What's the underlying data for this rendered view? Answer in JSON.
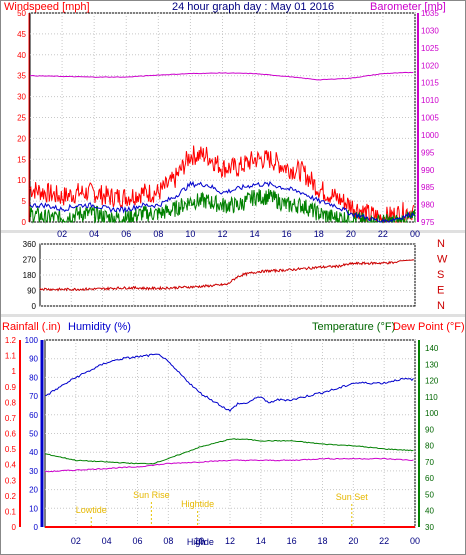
{
  "chart_data": [
    {
      "type": "line",
      "title": "24 hour graph day : May 01 2016",
      "ylabel_left": "Windspeed [mph]",
      "ylabel_right": "Barometer [mb]",
      "ylim": [
        0,
        50
      ],
      "y2lim": [
        975,
        1035
      ],
      "yticks": [
        "0",
        "5",
        "10",
        "15",
        "20",
        "25",
        "30",
        "35",
        "40",
        "45",
        "50"
      ],
      "y2ticks": [
        "975",
        "980",
        "985",
        "990",
        "995",
        "1000",
        "1005",
        "1010",
        "1015",
        "1020",
        "1025",
        "1030",
        "1035"
      ],
      "xticks": [
        "02",
        "04",
        "06",
        "08",
        "10",
        "12",
        "14",
        "16",
        "18",
        "20",
        "22",
        "00"
      ],
      "grid": true,
      "colors": {
        "gust": "#ff0000",
        "average": "#008000",
        "mean": "#0000cc",
        "barometer": "#cc00cc"
      },
      "series": [
        {
          "name": "Windspeed [mph]",
          "color": "#ff0000",
          "x": [
            0,
            1,
            2,
            3,
            4,
            5,
            6,
            7,
            8,
            9,
            10,
            11,
            12,
            13,
            14,
            15,
            16,
            17,
            18,
            19,
            20,
            21,
            22,
            23,
            24
          ],
          "values": [
            8,
            7,
            6,
            7,
            7,
            6,
            6,
            7,
            7,
            10,
            16,
            16,
            13,
            13,
            15,
            15,
            13,
            12,
            8,
            6,
            4,
            2,
            1,
            2,
            3
          ]
        },
        {
          "name": "Wind mean",
          "color": "#0000cc",
          "x": [
            0,
            1,
            2,
            3,
            4,
            5,
            6,
            7,
            8,
            9,
            10,
            11,
            12,
            13,
            14,
            15,
            16,
            17,
            18,
            19,
            20,
            21,
            22,
            23,
            24
          ],
          "values": [
            4,
            4,
            3,
            4,
            4,
            3,
            3,
            4,
            4,
            6,
            9,
            9,
            7,
            8,
            9,
            9,
            8,
            7,
            5,
            4,
            2,
            1,
            0,
            1,
            2
          ]
        },
        {
          "name": "Wind average",
          "color": "#008000",
          "x": [
            0,
            1,
            2,
            3,
            4,
            5,
            6,
            7,
            8,
            9,
            10,
            11,
            12,
            13,
            14,
            15,
            16,
            17,
            18,
            19,
            20,
            21,
            22,
            23,
            24
          ],
          "values": [
            2,
            1,
            1,
            2,
            2,
            1,
            1,
            2,
            2,
            3,
            5,
            5,
            4,
            4,
            6,
            6,
            4,
            4,
            2,
            1,
            1,
            0,
            0,
            0,
            1
          ]
        },
        {
          "name": "Barometer [mb]",
          "color": "#cc00cc",
          "x": [
            0,
            2,
            4,
            6,
            8,
            10,
            12,
            14,
            16,
            18,
            20,
            22,
            24
          ],
          "values": [
            1017,
            1016.8,
            1016.6,
            1016.6,
            1017.2,
            1017.6,
            1017.8,
            1017.6,
            1016.8,
            1015.8,
            1016.3,
            1017.6,
            1018
          ]
        }
      ]
    },
    {
      "type": "line",
      "ylim": [
        0,
        360
      ],
      "yticks": [
        "0",
        "90",
        "180",
        "270",
        "360"
      ],
      "direction_labels": [
        "N",
        "W",
        "S",
        "E",
        "N"
      ],
      "xticks": [
        "02",
        "04",
        "06",
        "08",
        "10",
        "12",
        "14",
        "16",
        "18",
        "20",
        "22",
        "00"
      ],
      "grid": true,
      "series": [
        {
          "name": "Wind direction",
          "color": "#cc0000",
          "x": [
            0,
            1,
            2,
            3,
            4,
            5,
            6,
            7,
            8,
            9,
            10,
            11,
            12,
            12.2,
            12.6,
            13,
            14,
            15,
            16,
            17,
            18,
            19,
            20,
            21,
            22,
            22.8,
            23,
            24
          ],
          "values": [
            100,
            96,
            97,
            98,
            100,
            104,
            106,
            102,
            104,
            108,
            112,
            118,
            126,
            140,
            168,
            182,
            200,
            205,
            210,
            218,
            226,
            230,
            246,
            248,
            250,
            252,
            262,
            268
          ]
        }
      ]
    },
    {
      "type": "line",
      "ylabel_left": "Rainfall (.in)",
      "ylabel_left2": "Humidity (%)",
      "ylabel_right": "Temperature (°F)",
      "ylabel_right2": "Dew Point (°F)",
      "rain_ticks": [
        "0",
        "0.1",
        "0.2",
        "0.3",
        "0.4",
        "0.5",
        "0.6",
        "0.7",
        "0.8",
        "0.9",
        "1",
        "1.1",
        "1.2"
      ],
      "humidity_ticks": [
        "0",
        "10",
        "20",
        "30",
        "40",
        "50",
        "60",
        "70",
        "80",
        "90",
        "100"
      ],
      "temp_ticks": [
        "30",
        "40",
        "50",
        "60",
        "70",
        "80",
        "90",
        "100",
        "110",
        "120",
        "130",
        "140"
      ],
      "xticks": [
        "02",
        "04",
        "06",
        "08",
        "10",
        "12",
        "14",
        "16",
        "18",
        "20",
        "22",
        "00"
      ],
      "grid": true,
      "annotations": [
        {
          "label": "Lowtide",
          "x": 3.0
        },
        {
          "label": "Sun Rise",
          "x": 6.9
        },
        {
          "label": "Hightide",
          "x": 9.9
        },
        {
          "label": "High",
          "x": 9.8
        },
        {
          "label": "Tide",
          "x": 10.4
        },
        {
          "label": "Sun Set",
          "x": 19.9
        }
      ],
      "series": [
        {
          "name": "Humidity (%)",
          "color": "#0000cc",
          "x": [
            0,
            1,
            2,
            3,
            4,
            5,
            6,
            7,
            7.5,
            8,
            9,
            10,
            11,
            12,
            12.5,
            13,
            13.5,
            14,
            14.5,
            15,
            16,
            17,
            18,
            19,
            20,
            21,
            22,
            23,
            24
          ],
          "values": [
            70,
            75,
            80,
            84,
            88,
            90,
            91,
            92,
            92,
            88,
            80,
            72,
            67,
            62,
            66,
            66,
            68,
            70,
            66,
            68,
            68,
            70,
            72,
            74,
            77,
            77,
            77,
            79,
            79
          ]
        },
        {
          "name": "Temperature (°F)",
          "color": "#008000",
          "x": [
            0,
            2,
            4,
            6,
            7,
            8,
            10,
            12,
            13,
            14,
            16,
            18,
            20,
            22,
            24
          ],
          "values": [
            75,
            71,
            70,
            69,
            69,
            72,
            79,
            84,
            84,
            83,
            83,
            81,
            80,
            78,
            77
          ]
        },
        {
          "name": "Dew Point (°F)",
          "color": "#cc00cc",
          "x": [
            0,
            2,
            4,
            6,
            8,
            10,
            12,
            14,
            16,
            18,
            20,
            22,
            24
          ],
          "values": [
            64,
            65,
            66,
            67,
            69,
            70,
            71,
            71,
            71,
            72,
            72,
            72,
            71
          ]
        },
        {
          "name": "Rainfall (.in)",
          "color": "#ff0000",
          "x": [
            0,
            24
          ],
          "values": [
            0,
            0
          ]
        }
      ]
    }
  ]
}
